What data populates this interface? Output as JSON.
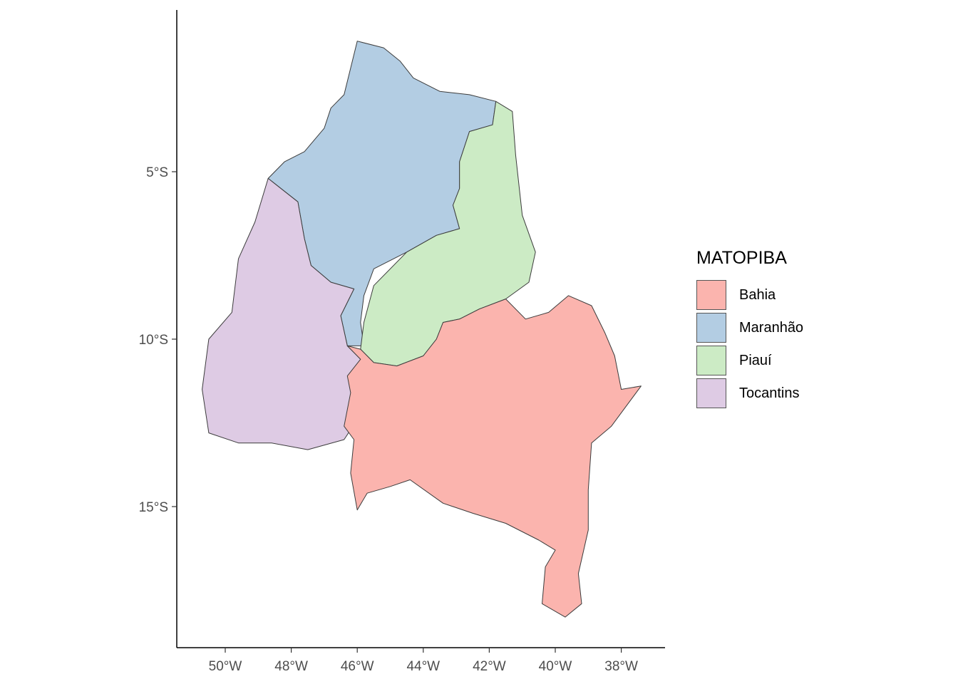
{
  "chart_data": {
    "type": "choropleth_map",
    "region_group": "MATOPIBA",
    "legend": {
      "title": "MATOPIBA",
      "position": "right",
      "items": [
        {
          "label": "Bahia",
          "color": "#FBB4AE"
        },
        {
          "label": "Maranhão",
          "color": "#B3CDE3"
        },
        {
          "label": "Piauí",
          "color": "#CCEBC5"
        },
        {
          "label": "Tocantins",
          "color": "#DECBE4"
        }
      ]
    },
    "x_axis": {
      "ticks": [
        {
          "value": -50,
          "label": "50°W"
        },
        {
          "value": -48,
          "label": "48°W"
        },
        {
          "value": -46,
          "label": "46°W"
        },
        {
          "value": -44,
          "label": "44°W"
        },
        {
          "value": -42,
          "label": "42°W"
        },
        {
          "value": -40,
          "label": "40°W"
        },
        {
          "value": -38,
          "label": "38°W"
        }
      ],
      "range": [
        -51.5,
        -37.1
      ]
    },
    "y_axis": {
      "ticks": [
        {
          "value": -5,
          "label": "5°S"
        },
        {
          "value": -10,
          "label": "10°S"
        },
        {
          "value": -15,
          "label": "15°S"
        }
      ],
      "range": [
        -18.9,
        -0.1
      ]
    },
    "grid": false,
    "regions": [
      {
        "name": "Maranhão",
        "color": "#B3CDE3",
        "outline": [
          [
            -48.7,
            -5.2
          ],
          [
            -48.2,
            -4.7
          ],
          [
            -47.6,
            -4.4
          ],
          [
            -47.0,
            -3.7
          ],
          [
            -46.8,
            -3.1
          ],
          [
            -46.4,
            -2.7
          ],
          [
            -46.0,
            -1.1
          ],
          [
            -45.2,
            -1.3
          ],
          [
            -44.7,
            -1.7
          ],
          [
            -44.3,
            -2.2
          ],
          [
            -43.5,
            -2.6
          ],
          [
            -42.6,
            -2.7
          ],
          [
            -41.8,
            -2.9
          ],
          [
            -41.9,
            -3.6
          ],
          [
            -42.6,
            -3.8
          ],
          [
            -42.9,
            -4.7
          ],
          [
            -42.9,
            -5.5
          ],
          [
            -43.1,
            -6.0
          ],
          [
            -42.9,
            -6.7
          ],
          [
            -43.6,
            -6.9
          ],
          [
            -44.5,
            -7.4
          ],
          [
            -45.5,
            -7.9
          ],
          [
            -45.8,
            -8.7
          ],
          [
            -45.9,
            -9.5
          ],
          [
            -45.8,
            -10.2
          ],
          [
            -46.3,
            -10.2
          ],
          [
            -46.5,
            -9.3
          ],
          [
            -46.1,
            -8.5
          ],
          [
            -46.8,
            -8.3
          ],
          [
            -47.4,
            -7.8
          ],
          [
            -47.6,
            -7.0
          ],
          [
            -47.8,
            -5.9
          ],
          [
            -48.7,
            -5.2
          ]
        ]
      },
      {
        "name": "Piauí",
        "color": "#CCEBC5",
        "outline": [
          [
            -41.8,
            -2.9
          ],
          [
            -41.3,
            -3.2
          ],
          [
            -41.2,
            -4.5
          ],
          [
            -41.0,
            -6.3
          ],
          [
            -40.6,
            -7.4
          ],
          [
            -40.8,
            -8.3
          ],
          [
            -41.5,
            -8.8
          ],
          [
            -42.3,
            -9.1
          ],
          [
            -42.9,
            -9.4
          ],
          [
            -43.4,
            -9.5
          ],
          [
            -43.6,
            -10.0
          ],
          [
            -44.0,
            -10.5
          ],
          [
            -44.8,
            -10.8
          ],
          [
            -45.5,
            -10.7
          ],
          [
            -45.9,
            -10.3
          ],
          [
            -45.8,
            -9.5
          ],
          [
            -45.5,
            -8.4
          ],
          [
            -44.5,
            -7.4
          ],
          [
            -43.6,
            -6.9
          ],
          [
            -42.9,
            -6.7
          ],
          [
            -43.1,
            -6.0
          ],
          [
            -42.9,
            -5.5
          ],
          [
            -42.9,
            -4.7
          ],
          [
            -42.6,
            -3.8
          ],
          [
            -41.9,
            -3.6
          ],
          [
            -41.8,
            -2.9
          ]
        ]
      },
      {
        "name": "Tocantins",
        "color": "#DECBE4",
        "outline": [
          [
            -48.7,
            -5.2
          ],
          [
            -47.8,
            -5.9
          ],
          [
            -47.6,
            -7.0
          ],
          [
            -47.4,
            -7.8
          ],
          [
            -46.8,
            -8.3
          ],
          [
            -46.1,
            -8.5
          ],
          [
            -46.5,
            -9.3
          ],
          [
            -46.3,
            -10.2
          ],
          [
            -45.9,
            -10.6
          ],
          [
            -46.2,
            -11.6
          ],
          [
            -46.0,
            -12.4
          ],
          [
            -46.4,
            -13.0
          ],
          [
            -47.5,
            -13.3
          ],
          [
            -48.6,
            -13.1
          ],
          [
            -49.6,
            -13.1
          ],
          [
            -50.5,
            -12.8
          ],
          [
            -50.7,
            -11.5
          ],
          [
            -50.5,
            -10.0
          ],
          [
            -49.8,
            -9.2
          ],
          [
            -49.6,
            -7.6
          ],
          [
            -49.1,
            -6.5
          ],
          [
            -48.7,
            -5.2
          ]
        ]
      },
      {
        "name": "Bahia",
        "color": "#FBB4AE",
        "outline": [
          [
            -46.3,
            -10.2
          ],
          [
            -45.9,
            -10.3
          ],
          [
            -45.5,
            -10.7
          ],
          [
            -44.8,
            -10.8
          ],
          [
            -44.0,
            -10.5
          ],
          [
            -43.6,
            -10.0
          ],
          [
            -43.4,
            -9.5
          ],
          [
            -42.9,
            -9.4
          ],
          [
            -42.3,
            -9.1
          ],
          [
            -41.5,
            -8.8
          ],
          [
            -40.9,
            -9.4
          ],
          [
            -40.2,
            -9.2
          ],
          [
            -39.6,
            -8.7
          ],
          [
            -38.9,
            -9.0
          ],
          [
            -38.5,
            -9.8
          ],
          [
            -38.2,
            -10.5
          ],
          [
            -38.0,
            -11.5
          ],
          [
            -37.4,
            -11.4
          ],
          [
            -38.3,
            -12.6
          ],
          [
            -38.9,
            -13.1
          ],
          [
            -39.0,
            -14.5
          ],
          [
            -39.0,
            -15.7
          ],
          [
            -39.3,
            -17.0
          ],
          [
            -39.2,
            -17.9
          ],
          [
            -39.7,
            -18.3
          ],
          [
            -40.4,
            -17.9
          ],
          [
            -40.3,
            -16.8
          ],
          [
            -40.0,
            -16.3
          ],
          [
            -40.5,
            -16.0
          ],
          [
            -41.5,
            -15.5
          ],
          [
            -42.5,
            -15.2
          ],
          [
            -43.4,
            -14.9
          ],
          [
            -44.4,
            -14.2
          ],
          [
            -45.0,
            -14.4
          ],
          [
            -45.7,
            -14.6
          ],
          [
            -46.0,
            -15.1
          ],
          [
            -46.2,
            -14.0
          ],
          [
            -46.1,
            -13.0
          ],
          [
            -46.4,
            -12.6
          ],
          [
            -46.2,
            -11.6
          ],
          [
            -46.3,
            -11.1
          ],
          [
            -45.9,
            -10.6
          ],
          [
            -46.3,
            -10.2
          ]
        ]
      }
    ]
  }
}
